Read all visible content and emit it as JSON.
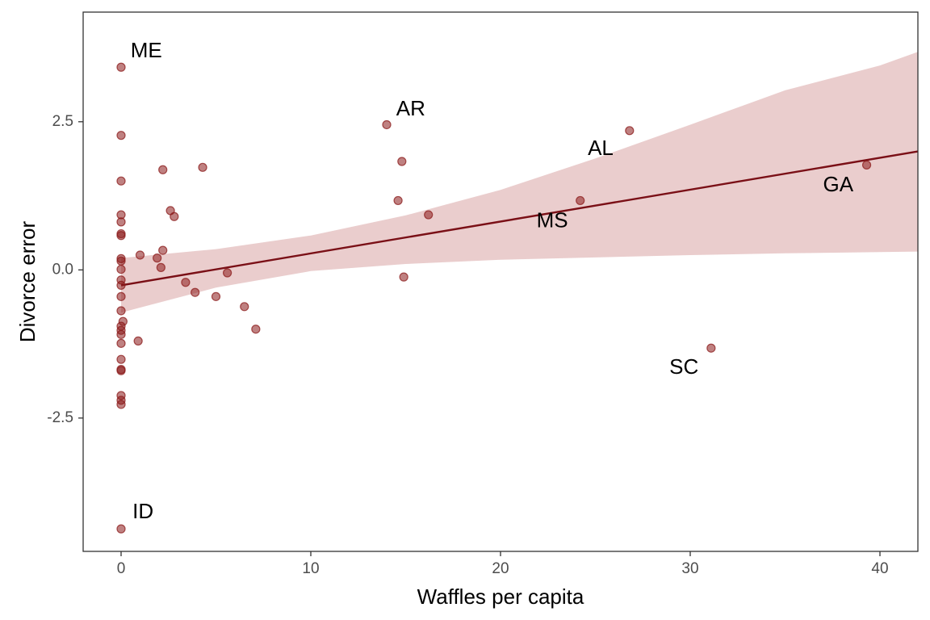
{
  "chart_data": {
    "type": "scatter",
    "xlabel": "Waffles per capita",
    "ylabel": "Divorce error",
    "xlim": [
      -2,
      42
    ],
    "ylim": [
      -4.75,
      4.35
    ],
    "x_ticks": [
      {
        "value": 0,
        "label": "0"
      },
      {
        "value": 10,
        "label": "10"
      },
      {
        "value": 20,
        "label": "20"
      },
      {
        "value": 30,
        "label": "30"
      },
      {
        "value": 40,
        "label": "40"
      }
    ],
    "y_ticks": [
      {
        "value": 2.5,
        "label": "2.5"
      },
      {
        "value": 0,
        "label": "0.0"
      },
      {
        "value": -2.5,
        "label": "-2.5"
      }
    ],
    "grid": false,
    "point_color": "#8b1a1a",
    "band_color": "#e8c8c8",
    "line_color": "#7a0f16",
    "points": [
      {
        "x": 0,
        "y": 3.42
      },
      {
        "x": 0,
        "y": 2.27
      },
      {
        "x": 0,
        "y": 1.5
      },
      {
        "x": 0,
        "y": 0.93
      },
      {
        "x": 0,
        "y": 0.81
      },
      {
        "x": 0,
        "y": 0.61
      },
      {
        "x": 0,
        "y": 0.58
      },
      {
        "x": 0,
        "y": 0.19
      },
      {
        "x": 0,
        "y": 0.15
      },
      {
        "x": 0,
        "y": 0.01
      },
      {
        "x": 0,
        "y": -0.17
      },
      {
        "x": 0,
        "y": -0.26
      },
      {
        "x": 0,
        "y": -0.45
      },
      {
        "x": 0,
        "y": -0.69
      },
      {
        "x": 0,
        "y": -0.95
      },
      {
        "x": 0,
        "y": -1.02
      },
      {
        "x": 0,
        "y": -1.09
      },
      {
        "x": 0,
        "y": -1.24
      },
      {
        "x": 0,
        "y": -1.51
      },
      {
        "x": 0,
        "y": -1.68
      },
      {
        "x": 0,
        "y": -1.7
      },
      {
        "x": 0,
        "y": -2.12
      },
      {
        "x": 0,
        "y": -2.2
      },
      {
        "x": 0,
        "y": -2.27
      },
      {
        "x": 0,
        "y": -4.37
      },
      {
        "x": 0.1,
        "y": -0.87
      },
      {
        "x": 0.9,
        "y": -1.2
      },
      {
        "x": 1.0,
        "y": 0.25
      },
      {
        "x": 1.9,
        "y": 0.2
      },
      {
        "x": 2.1,
        "y": 0.04
      },
      {
        "x": 2.2,
        "y": 0.33
      },
      {
        "x": 2.2,
        "y": 1.69
      },
      {
        "x": 2.6,
        "y": 1.0
      },
      {
        "x": 2.8,
        "y": 0.9
      },
      {
        "x": 3.4,
        "y": -0.21
      },
      {
        "x": 3.9,
        "y": -0.38
      },
      {
        "x": 4.3,
        "y": 1.73
      },
      {
        "x": 5.0,
        "y": -0.45
      },
      {
        "x": 5.6,
        "y": -0.05
      },
      {
        "x": 6.5,
        "y": -0.62
      },
      {
        "x": 7.1,
        "y": -1.0
      },
      {
        "x": 14.0,
        "y": 2.45
      },
      {
        "x": 14.6,
        "y": 1.17
      },
      {
        "x": 14.8,
        "y": 1.83
      },
      {
        "x": 14.9,
        "y": -0.12
      },
      {
        "x": 16.2,
        "y": 0.93
      },
      {
        "x": 24.2,
        "y": 1.17
      },
      {
        "x": 26.8,
        "y": 2.35
      },
      {
        "x": 31.1,
        "y": -1.32
      },
      {
        "x": 39.3,
        "y": 1.77
      }
    ],
    "labels": [
      {
        "text": "ME",
        "x": 0.5,
        "y": 3.68
      },
      {
        "text": "AR",
        "x": 14.5,
        "y": 2.7
      },
      {
        "text": "AL",
        "x": 24.6,
        "y": 2.03
      },
      {
        "text": "GA",
        "x": 37.0,
        "y": 1.42
      },
      {
        "text": "MS",
        "x": 21.9,
        "y": 0.81
      },
      {
        "text": "SC",
        "x": 28.9,
        "y": -1.66
      },
      {
        "text": "ID",
        "x": 0.6,
        "y": -4.1
      }
    ],
    "fit": {
      "intercept": -0.26,
      "slope": 0.0538
    },
    "band": [
      {
        "x": 0,
        "lower": -0.72,
        "upper": 0.2
      },
      {
        "x": 5,
        "lower": -0.3,
        "upper": 0.35
      },
      {
        "x": 10,
        "lower": -0.02,
        "upper": 0.58
      },
      {
        "x": 15,
        "lower": 0.1,
        "upper": 0.92
      },
      {
        "x": 20,
        "lower": 0.17,
        "upper": 1.35
      },
      {
        "x": 25,
        "lower": 0.21,
        "upper": 1.88
      },
      {
        "x": 30,
        "lower": 0.25,
        "upper": 2.45
      },
      {
        "x": 35,
        "lower": 0.28,
        "upper": 3.03
      },
      {
        "x": 40,
        "lower": 0.3,
        "upper": 3.45
      },
      {
        "x": 42,
        "lower": 0.31,
        "upper": 3.68
      }
    ]
  }
}
